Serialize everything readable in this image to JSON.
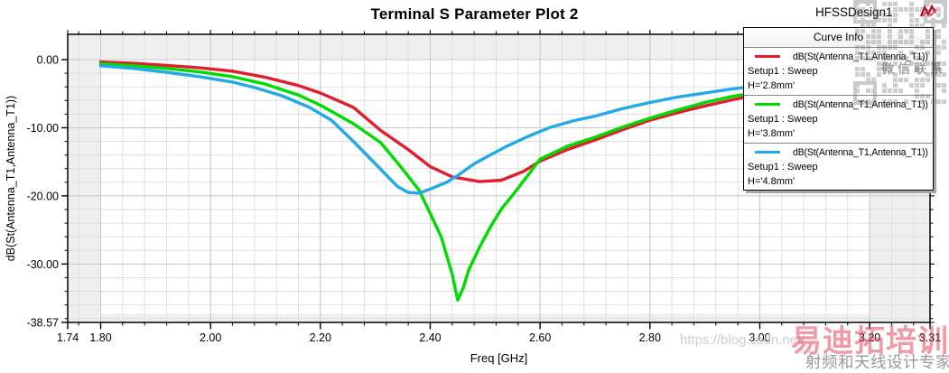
{
  "title": "Terminal S Parameter Plot 2",
  "design_name": "HFSSDesign1",
  "legend": {
    "header": "Curve Info",
    "entries": [
      {
        "color": "#e11d2e",
        "label": "dB(St(Antenna_T1,Antenna_T1))",
        "setup": "Setup1 : Sweep",
        "variation": "H='2.8mm'"
      },
      {
        "color": "#00dc00",
        "label": "dB(St(Antenna_T1,Antenna_T1))",
        "setup": "Setup1 : Sweep",
        "variation": "H='3.8mm'"
      },
      {
        "color": "#22a9e8",
        "label": "dB(St(Antenna_T1,Antenna_T1))",
        "setup": "Setup1 : Sweep",
        "variation": "H='4.8mm'"
      }
    ]
  },
  "watermarks": {
    "wechat_text": "微信联系",
    "url_text": "https://blog.csdn.net/",
    "brand_text": "易迪拓培训",
    "slogan_text": "射频和天线设计专家"
  },
  "chart_data": {
    "type": "line",
    "title": "Terminal S Parameter Plot 2",
    "xlabel": "Freq [GHz]",
    "ylabel": "dB(St(Antenna_T1,Antenna_T1))",
    "xlim": [
      1.74,
      3.31
    ],
    "ylim": [
      -38.57,
      0
    ],
    "x_ticks": [
      1.74,
      1.8,
      2.0,
      2.2,
      2.4,
      2.6,
      2.8,
      3.0,
      3.2,
      3.31
    ],
    "x_tick_labels": [
      "1.74",
      "1.80",
      "2.00",
      "2.20",
      "2.40",
      "2.60",
      "2.80",
      "3.00",
      "3.20",
      "3.31"
    ],
    "y_ticks": [
      0,
      -10,
      -20,
      -30,
      -38.57
    ],
    "y_tick_labels": [
      "0.00",
      "-10.00",
      "-20.00",
      "-30.00",
      "-38.57"
    ],
    "x_minor_step": 0.04,
    "y_minor_step": 2,
    "valid_region": {
      "x": [
        1.8,
        3.2
      ],
      "y": [
        -37.3,
        0
      ]
    },
    "grid": true,
    "legend_position": "top-right",
    "colors": {
      "minor_grid": "#e0e0e0",
      "major_grid": "#c8c8c8",
      "out_of_range": "#efefef",
      "frame": "#000000"
    },
    "series": [
      {
        "name": "dB(St(Antenna_T1,Antenna_T1)) H='2.8mm'",
        "color": "#e11d2e",
        "data": [
          [
            1.8,
            -0.35
          ],
          [
            1.86,
            -0.55
          ],
          [
            1.92,
            -0.85
          ],
          [
            1.98,
            -1.2
          ],
          [
            2.04,
            -1.7
          ],
          [
            2.1,
            -2.6
          ],
          [
            2.16,
            -3.8
          ],
          [
            2.2,
            -4.9
          ],
          [
            2.26,
            -7.0
          ],
          [
            2.31,
            -10.4
          ],
          [
            2.36,
            -13.2
          ],
          [
            2.4,
            -15.7
          ],
          [
            2.44,
            -17.2
          ],
          [
            2.49,
            -17.9
          ],
          [
            2.53,
            -17.7
          ],
          [
            2.57,
            -16.4
          ],
          [
            2.6,
            -14.9
          ],
          [
            2.65,
            -13.2
          ],
          [
            2.7,
            -11.8
          ],
          [
            2.75,
            -10.3
          ],
          [
            2.8,
            -8.9
          ],
          [
            2.85,
            -7.8
          ],
          [
            2.9,
            -6.8
          ],
          [
            2.95,
            -5.9
          ],
          [
            3.0,
            -5.1
          ],
          [
            3.05,
            -4.5
          ],
          [
            3.1,
            -4.0
          ],
          [
            3.15,
            -3.6
          ],
          [
            3.2,
            -3.2
          ]
        ]
      },
      {
        "name": "dB(St(Antenna_T1,Antenna_T1)) H='3.8mm'",
        "color": "#00dc00",
        "data": [
          [
            1.8,
            -0.6
          ],
          [
            1.86,
            -0.9
          ],
          [
            1.92,
            -1.3
          ],
          [
            1.98,
            -1.8
          ],
          [
            2.04,
            -2.5
          ],
          [
            2.1,
            -3.6
          ],
          [
            2.16,
            -5.2
          ],
          [
            2.2,
            -6.7
          ],
          [
            2.26,
            -9.4
          ],
          [
            2.31,
            -12.2
          ],
          [
            2.35,
            -16.1
          ],
          [
            2.38,
            -19.2
          ],
          [
            2.4,
            -22.6
          ],
          [
            2.42,
            -26.0
          ],
          [
            2.44,
            -31.5
          ],
          [
            2.45,
            -35.3
          ],
          [
            2.46,
            -33.5
          ],
          [
            2.47,
            -30.9
          ],
          [
            2.49,
            -27.5
          ],
          [
            2.51,
            -24.5
          ],
          [
            2.53,
            -21.9
          ],
          [
            2.55,
            -19.9
          ],
          [
            2.57,
            -17.8
          ],
          [
            2.6,
            -14.6
          ],
          [
            2.65,
            -12.7
          ],
          [
            2.7,
            -11.4
          ],
          [
            2.75,
            -9.9
          ],
          [
            2.8,
            -8.6
          ],
          [
            2.85,
            -7.4
          ],
          [
            2.9,
            -6.3
          ],
          [
            2.95,
            -5.4
          ],
          [
            3.0,
            -4.8
          ],
          [
            3.05,
            -4.3
          ],
          [
            3.1,
            -3.8
          ],
          [
            3.15,
            -3.4
          ],
          [
            3.2,
            -3.0
          ]
        ]
      },
      {
        "name": "dB(St(Antenna_T1,Antenna_T1)) H='4.8mm'",
        "color": "#22a9e8",
        "data": [
          [
            1.8,
            -0.9
          ],
          [
            1.86,
            -1.3
          ],
          [
            1.92,
            -1.85
          ],
          [
            1.98,
            -2.5
          ],
          [
            2.04,
            -3.3
          ],
          [
            2.08,
            -4.1
          ],
          [
            2.13,
            -5.3
          ],
          [
            2.18,
            -7.0
          ],
          [
            2.22,
            -8.9
          ],
          [
            2.26,
            -12.0
          ],
          [
            2.31,
            -16.1
          ],
          [
            2.34,
            -18.6
          ],
          [
            2.36,
            -19.5
          ],
          [
            2.38,
            -19.6
          ],
          [
            2.4,
            -19.0
          ],
          [
            2.43,
            -18.0
          ],
          [
            2.45,
            -17.0
          ],
          [
            2.48,
            -15.3
          ],
          [
            2.5,
            -14.4
          ],
          [
            2.54,
            -12.7
          ],
          [
            2.58,
            -11.2
          ],
          [
            2.62,
            -9.9
          ],
          [
            2.66,
            -9.0
          ],
          [
            2.7,
            -8.3
          ],
          [
            2.75,
            -7.2
          ],
          [
            2.8,
            -6.3
          ],
          [
            2.85,
            -5.5
          ],
          [
            2.9,
            -4.9
          ],
          [
            2.95,
            -4.3
          ],
          [
            3.0,
            -3.8
          ],
          [
            3.05,
            -3.4
          ],
          [
            3.1,
            -3.1
          ],
          [
            3.15,
            -2.8
          ],
          [
            3.2,
            -2.6
          ]
        ]
      }
    ]
  }
}
